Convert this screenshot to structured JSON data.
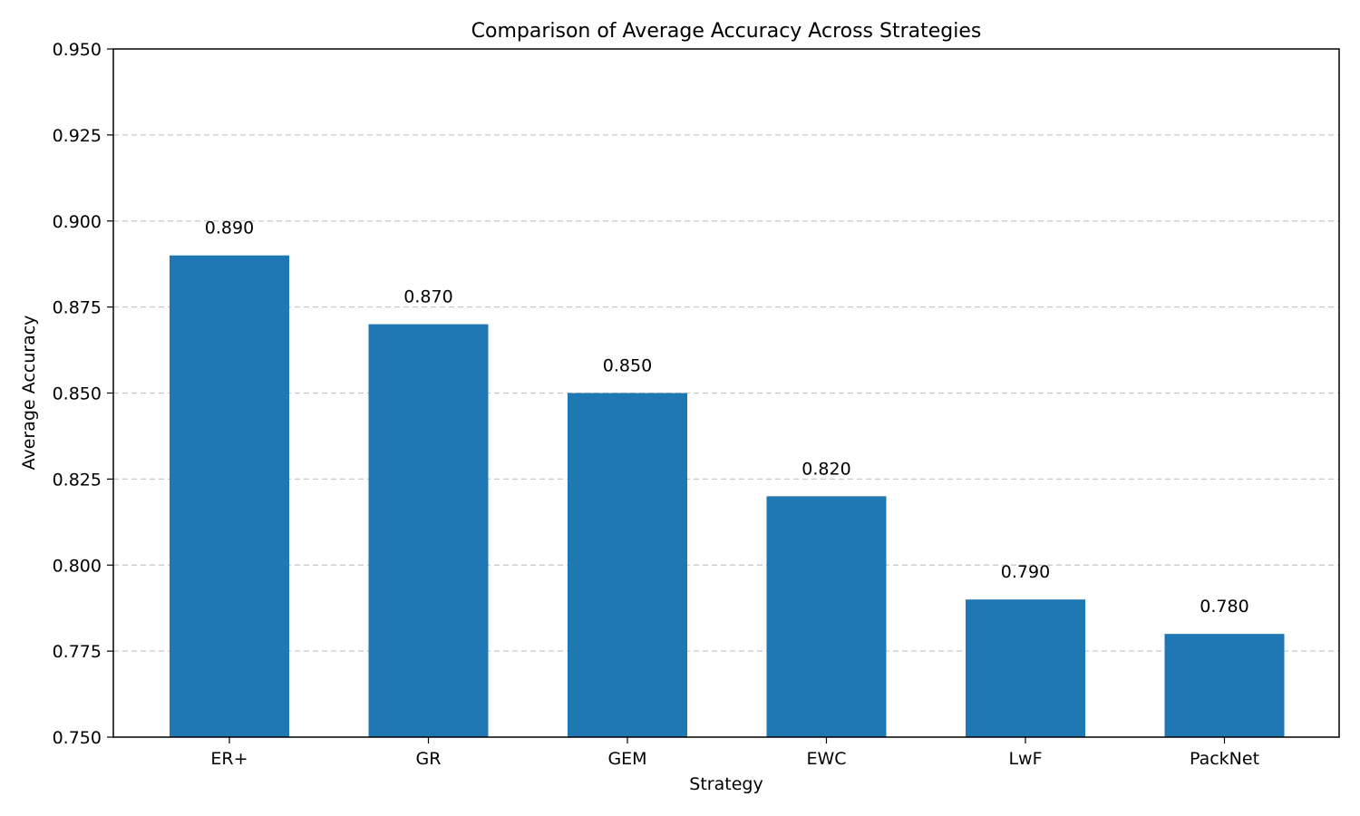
{
  "chart_data": {
    "type": "bar",
    "title": "Comparison of Average Accuracy Across Strategies",
    "xlabel": "Strategy",
    "ylabel": "Average Accuracy",
    "categories": [
      "ER+",
      "GR",
      "GEM",
      "EWC",
      "LwF",
      "PackNet"
    ],
    "values": [
      0.89,
      0.87,
      0.85,
      0.82,
      0.79,
      0.78
    ],
    "value_labels": [
      "0.890",
      "0.870",
      "0.850",
      "0.820",
      "0.790",
      "0.780"
    ],
    "ylim": [
      0.75,
      0.95
    ],
    "yticks": [
      0.75,
      0.775,
      0.8,
      0.825,
      0.85,
      0.875,
      0.9,
      0.925,
      0.95
    ],
    "ytick_labels": [
      "0.750",
      "0.775",
      "0.800",
      "0.825",
      "0.850",
      "0.875",
      "0.900",
      "0.925",
      "0.950"
    ],
    "grid": "y-dashed",
    "legend": "none",
    "bar_color": "#1f77b4"
  }
}
